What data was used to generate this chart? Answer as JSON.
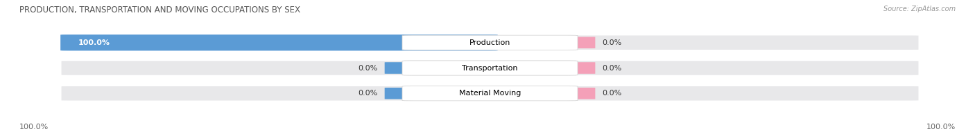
{
  "title": "PRODUCTION, TRANSPORTATION AND MOVING OCCUPATIONS BY SEX",
  "source": "Source: ZipAtlas.com",
  "categories": [
    "Production",
    "Transportation",
    "Material Moving"
  ],
  "male_values": [
    100.0,
    0.0,
    0.0
  ],
  "female_values": [
    0.0,
    0.0,
    0.0
  ],
  "male_color": "#5b9bd5",
  "female_color": "#f4a0b8",
  "bar_bg_color": "#e8e8ea",
  "label_left_male": [
    "100.0%",
    "0.0%",
    "0.0%"
  ],
  "label_right_female": [
    "0.0%",
    "0.0%",
    "0.0%"
  ],
  "x_left_label": "100.0%",
  "x_right_label": "100.0%",
  "figsize": [
    14.06,
    1.97
  ],
  "dpi": 100
}
